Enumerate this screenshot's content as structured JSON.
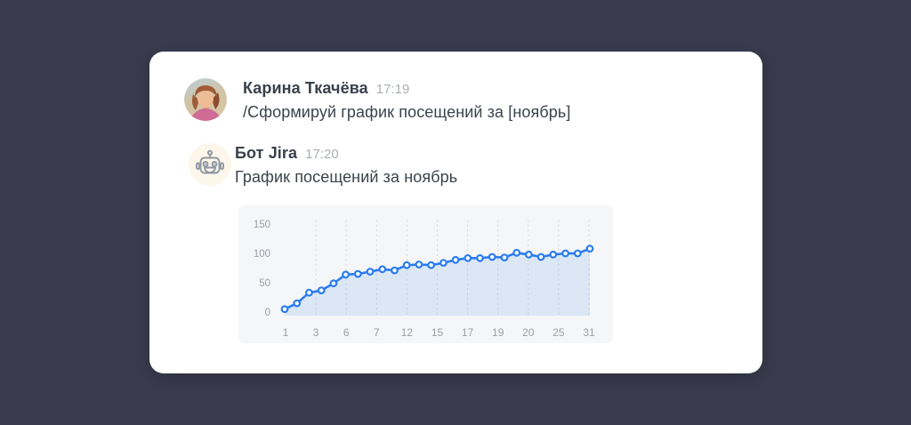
{
  "theme": {
    "page_background": "#3a3b4e",
    "card_background": "#ffffff",
    "author_color": "#3a414b",
    "timestamp_color": "#a9aeb5",
    "text_color": "#3d434b",
    "chart_panel": "#f5f6f8"
  },
  "messages": [
    {
      "author": "Карина Ткачёва",
      "time": "17:19",
      "text": "/Сформируй график посещений за [ноябрь]",
      "avatar": "woman-photo-avatar"
    },
    {
      "author": "Бот Jira",
      "time": "17:20",
      "text": "График посещений за ноябрь",
      "avatar": "robot-avatar"
    }
  ],
  "chart_data": {
    "type": "area",
    "title": "",
    "xlabel": "",
    "ylabel": "",
    "x_tick_labels": [
      "1",
      "3",
      "6",
      "7",
      "12",
      "15",
      "17",
      "19",
      "20",
      "25",
      "31"
    ],
    "y_tick_labels": [
      "0",
      "50",
      "100",
      "150"
    ],
    "ylim": [
      0,
      150
    ],
    "values": [
      5,
      15,
      33,
      37,
      49,
      64,
      65,
      69,
      73,
      71,
      80,
      81,
      80,
      84,
      89,
      92,
      92,
      94,
      93,
      101,
      98,
      94,
      98,
      100,
      100,
      108
    ],
    "grid": "vertical-dashed",
    "legend": "none",
    "line_color": "#2b7cf0",
    "marker_fill": "#ffffff",
    "area_fill": "rgba(43,124,240,0.12)",
    "tick_color": "#989fa7",
    "gridline_color": "#d9dce1"
  }
}
